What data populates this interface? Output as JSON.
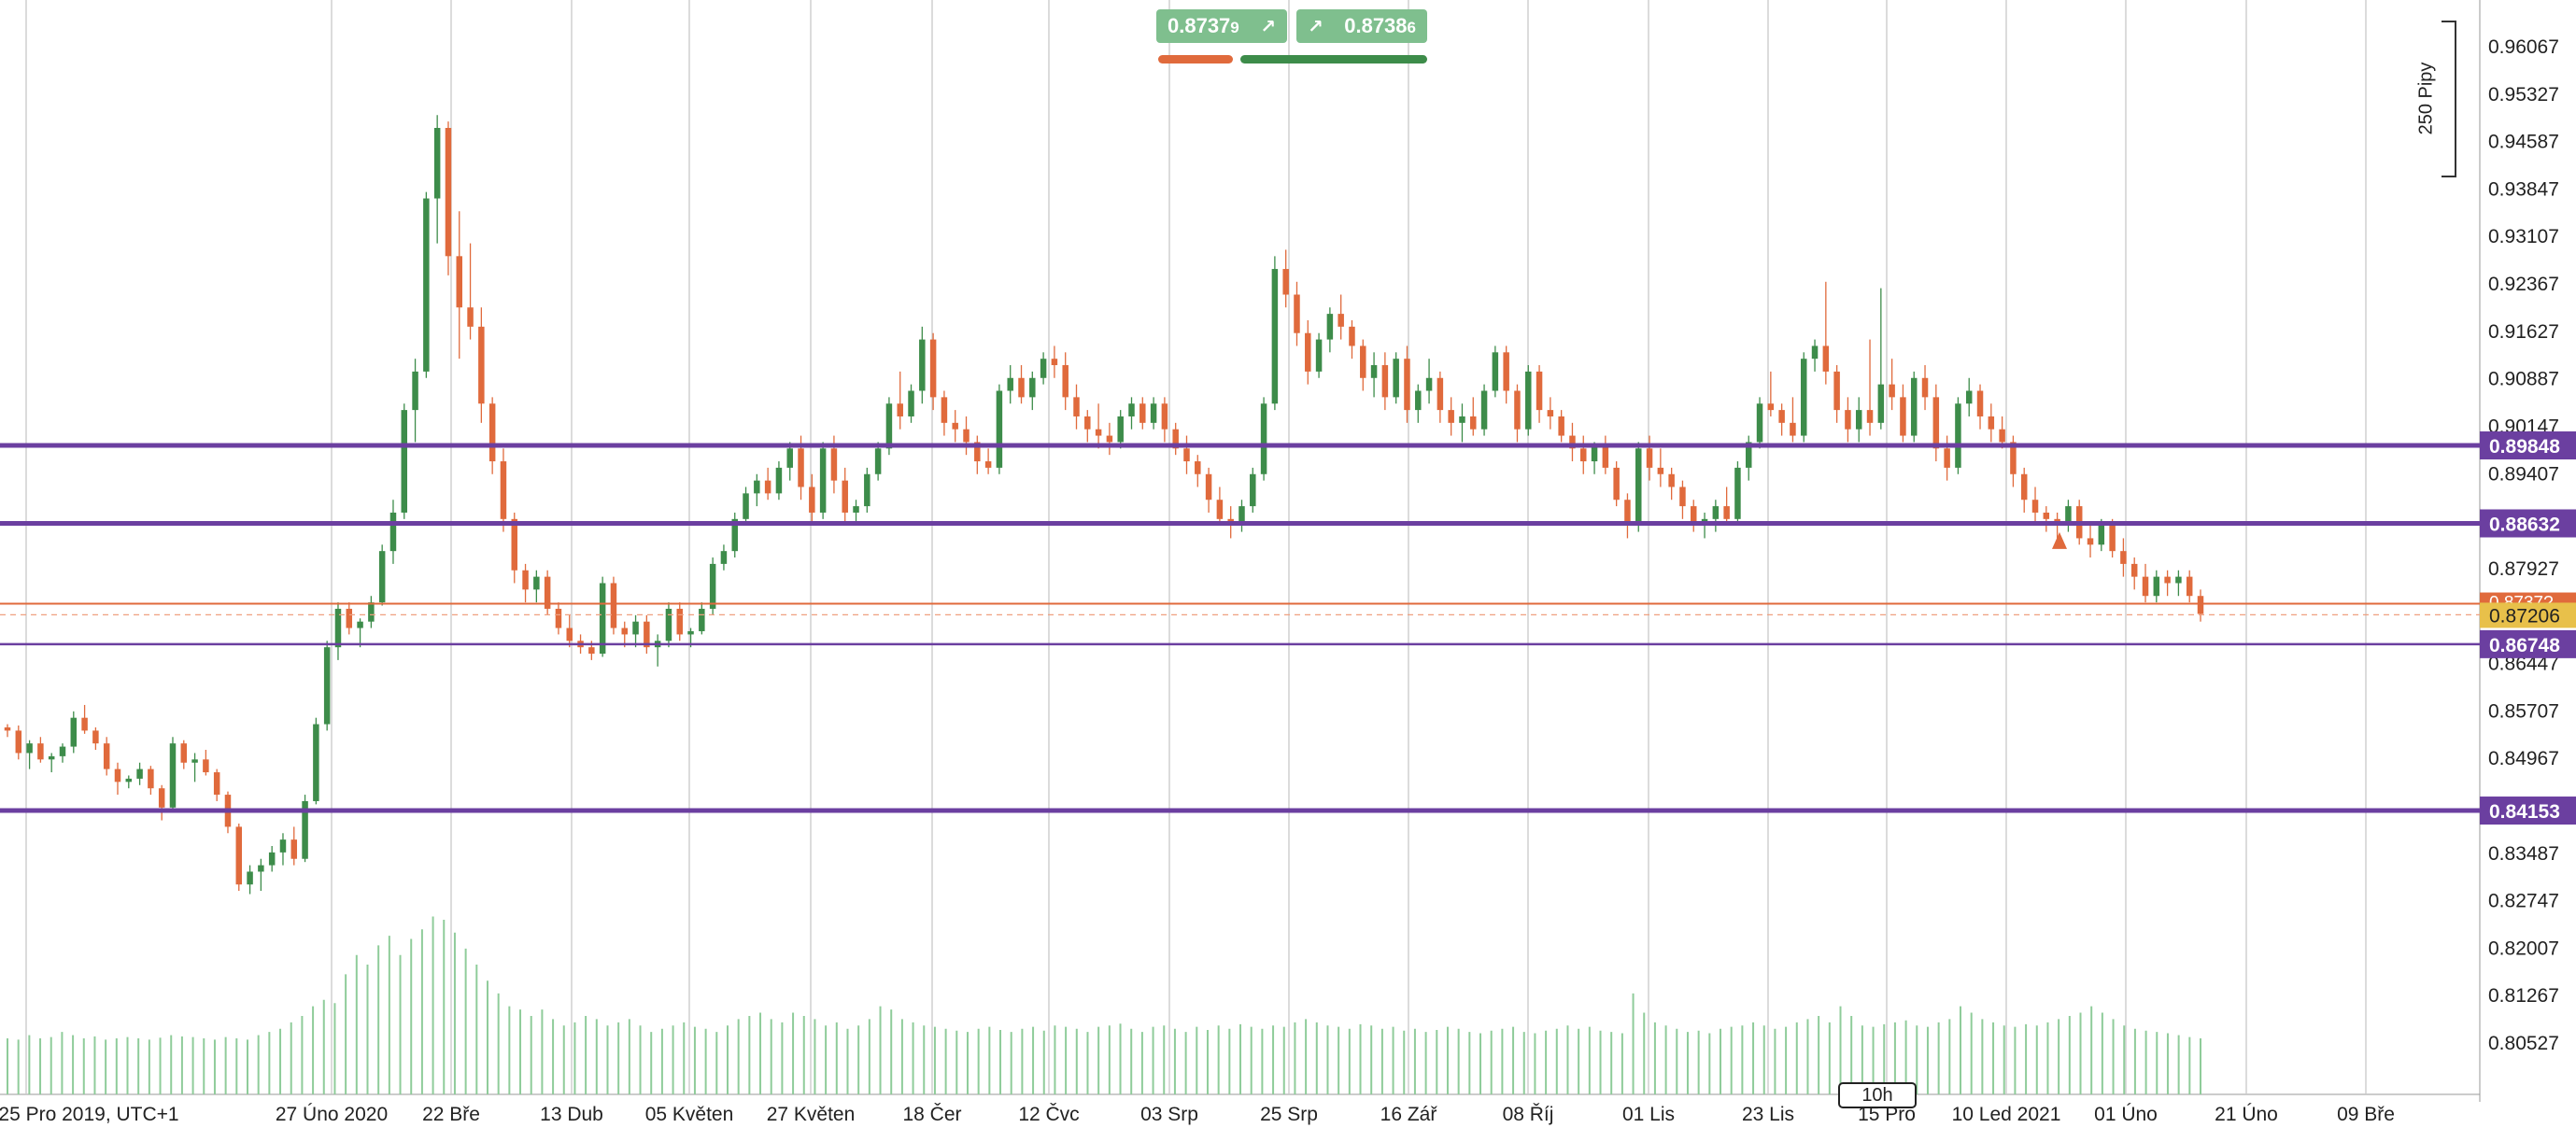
{
  "chart_data": {
    "type": "candlestick",
    "y_ticks": [
      "0.96067",
      "0.95327",
      "0.94587",
      "0.93847",
      "0.93107",
      "0.92367",
      "0.91627",
      "0.90887",
      "0.90147",
      "0.89407",
      "0.87927",
      "0.86447",
      "0.85707",
      "0.84967",
      "0.83487",
      "0.82747",
      "0.82007",
      "0.81267",
      "0.80527"
    ],
    "x_labels": [
      "25 Pro 2019, UTC+1",
      "27 Úno 2020",
      "22 Bře",
      "13 Dub",
      "05 Květen",
      "27 Květen",
      "18 Čer",
      "12 Čvc",
      "03 Srp",
      "25 Srp",
      "16 Zář",
      "08 Říj",
      "01 Lis",
      "23 Lis",
      "15 Pro",
      "10 Led 2021",
      "01 Úno",
      "21 Úno",
      "09 Bře"
    ],
    "ylim": [
      0.7987,
      0.9658
    ],
    "horizontal_levels": [
      {
        "value": 0.89848,
        "label": "0.89848",
        "color": "#6b3fa0"
      },
      {
        "value": 0.88632,
        "label": "0.88632",
        "color": "#6b3fa0"
      },
      {
        "value": 0.86748,
        "label": "0.86748",
        "color": "#6b3fa0"
      },
      {
        "value": 0.84153,
        "label": "0.84153",
        "color": "#6b3fa0"
      }
    ],
    "current_ask": {
      "value": 0.87379,
      "label": "0.8737?",
      "color": "#e06a3c"
    },
    "current_price": {
      "value": 0.87206,
      "label": "0.87206",
      "color": "#e8c04a"
    },
    "bid_quote": "0.8737",
    "bid_quote_small": "9",
    "ask_quote": "0.8738",
    "ask_quote_small": "6",
    "pip_label": "250 Pipy",
    "timeframe": "10h",
    "colors": {
      "up": "#3d8c4a",
      "down": "#e06a3c",
      "volume": "#8fcc9a",
      "grid": "#c8c8c8"
    },
    "candles": [
      [
        0.8545,
        0.855,
        0.853,
        0.854
      ],
      [
        0.854,
        0.8548,
        0.8495,
        0.8505
      ],
      [
        0.8505,
        0.8525,
        0.848,
        0.852
      ],
      [
        0.852,
        0.853,
        0.849,
        0.8495
      ],
      [
        0.8495,
        0.8505,
        0.8475,
        0.85
      ],
      [
        0.85,
        0.852,
        0.849,
        0.8515
      ],
      [
        0.8515,
        0.857,
        0.8505,
        0.856
      ],
      [
        0.856,
        0.858,
        0.8535,
        0.854
      ],
      [
        0.854,
        0.8545,
        0.851,
        0.852
      ],
      [
        0.852,
        0.853,
        0.847,
        0.848
      ],
      [
        0.848,
        0.849,
        0.844,
        0.846
      ],
      [
        0.846,
        0.847,
        0.845,
        0.8465
      ],
      [
        0.8465,
        0.849,
        0.8455,
        0.848
      ],
      [
        0.848,
        0.8485,
        0.844,
        0.845
      ],
      [
        0.845,
        0.8455,
        0.84,
        0.842
      ],
      [
        0.842,
        0.853,
        0.8415,
        0.852
      ],
      [
        0.852,
        0.8525,
        0.848,
        0.849
      ],
      [
        0.849,
        0.8505,
        0.846,
        0.8495
      ],
      [
        0.8495,
        0.851,
        0.847,
        0.8475
      ],
      [
        0.8475,
        0.848,
        0.843,
        0.844
      ],
      [
        0.844,
        0.8445,
        0.838,
        0.839
      ],
      [
        0.839,
        0.8395,
        0.829,
        0.83
      ],
      [
        0.83,
        0.833,
        0.8285,
        0.832
      ],
      [
        0.832,
        0.834,
        0.829,
        0.833
      ],
      [
        0.833,
        0.836,
        0.832,
        0.835
      ],
      [
        0.835,
        0.838,
        0.833,
        0.837
      ],
      [
        0.837,
        0.839,
        0.833,
        0.834
      ],
      [
        0.834,
        0.844,
        0.8335,
        0.843
      ],
      [
        0.843,
        0.856,
        0.8425,
        0.855
      ],
      [
        0.855,
        0.868,
        0.854,
        0.867
      ],
      [
        0.867,
        0.874,
        0.865,
        0.873
      ],
      [
        0.873,
        0.874,
        0.869,
        0.87
      ],
      [
        0.87,
        0.8715,
        0.867,
        0.871
      ],
      [
        0.871,
        0.875,
        0.87,
        0.874
      ],
      [
        0.874,
        0.883,
        0.8735,
        0.882
      ],
      [
        0.882,
        0.89,
        0.88,
        0.888
      ],
      [
        0.888,
        0.905,
        0.887,
        0.904
      ],
      [
        0.904,
        0.912,
        0.899,
        0.91
      ],
      [
        0.91,
        0.938,
        0.909,
        0.937
      ],
      [
        0.937,
        0.95,
        0.93,
        0.948
      ],
      [
        0.948,
        0.949,
        0.925,
        0.928
      ],
      [
        0.928,
        0.935,
        0.912,
        0.92
      ],
      [
        0.92,
        0.93,
        0.915,
        0.917
      ],
      [
        0.917,
        0.92,
        0.902,
        0.905
      ],
      [
        0.905,
        0.906,
        0.894,
        0.896
      ],
      [
        0.896,
        0.898,
        0.885,
        0.887
      ],
      [
        0.887,
        0.888,
        0.877,
        0.879
      ],
      [
        0.879,
        0.88,
        0.874,
        0.876
      ],
      [
        0.876,
        0.879,
        0.874,
        0.878
      ],
      [
        0.878,
        0.879,
        0.872,
        0.873
      ],
      [
        0.873,
        0.874,
        0.869,
        0.87
      ],
      [
        0.87,
        0.872,
        0.867,
        0.868
      ],
      [
        0.868,
        0.869,
        0.866,
        0.867
      ],
      [
        0.867,
        0.868,
        0.865,
        0.866
      ],
      [
        0.866,
        0.878,
        0.8655,
        0.877
      ],
      [
        0.877,
        0.878,
        0.869,
        0.87
      ],
      [
        0.87,
        0.871,
        0.867,
        0.869
      ],
      [
        0.869,
        0.872,
        0.867,
        0.871
      ],
      [
        0.871,
        0.872,
        0.866,
        0.867
      ],
      [
        0.867,
        0.869,
        0.864,
        0.868
      ],
      [
        0.868,
        0.874,
        0.867,
        0.873
      ],
      [
        0.873,
        0.874,
        0.868,
        0.869
      ],
      [
        0.869,
        0.87,
        0.867,
        0.8695
      ],
      [
        0.8695,
        0.874,
        0.869,
        0.873
      ],
      [
        0.873,
        0.881,
        0.872,
        0.88
      ],
      [
        0.88,
        0.883,
        0.879,
        0.882
      ],
      [
        0.882,
        0.888,
        0.881,
        0.887
      ],
      [
        0.887,
        0.892,
        0.886,
        0.891
      ],
      [
        0.891,
        0.894,
        0.889,
        0.893
      ],
      [
        0.893,
        0.895,
        0.89,
        0.891
      ],
      [
        0.891,
        0.896,
        0.89,
        0.895
      ],
      [
        0.895,
        0.899,
        0.893,
        0.898
      ],
      [
        0.898,
        0.9,
        0.89,
        0.892
      ],
      [
        0.892,
        0.894,
        0.886,
        0.888
      ],
      [
        0.888,
        0.899,
        0.887,
        0.898
      ],
      [
        0.898,
        0.9,
        0.891,
        0.893
      ],
      [
        0.893,
        0.895,
        0.886,
        0.888
      ],
      [
        0.888,
        0.89,
        0.886,
        0.889
      ],
      [
        0.889,
        0.895,
        0.888,
        0.894
      ],
      [
        0.894,
        0.899,
        0.893,
        0.898
      ],
      [
        0.898,
        0.906,
        0.897,
        0.905
      ],
      [
        0.905,
        0.91,
        0.901,
        0.903
      ],
      [
        0.903,
        0.908,
        0.902,
        0.907
      ],
      [
        0.907,
        0.917,
        0.905,
        0.915
      ],
      [
        0.915,
        0.916,
        0.904,
        0.906
      ],
      [
        0.906,
        0.907,
        0.9,
        0.902
      ],
      [
        0.902,
        0.904,
        0.899,
        0.901
      ],
      [
        0.901,
        0.903,
        0.897,
        0.899
      ],
      [
        0.899,
        0.9,
        0.894,
        0.896
      ],
      [
        0.896,
        0.898,
        0.894,
        0.895
      ],
      [
        0.895,
        0.908,
        0.894,
        0.907
      ],
      [
        0.907,
        0.911,
        0.905,
        0.909
      ],
      [
        0.909,
        0.911,
        0.905,
        0.906
      ],
      [
        0.906,
        0.91,
        0.904,
        0.909
      ],
      [
        0.909,
        0.913,
        0.908,
        0.912
      ],
      [
        0.912,
        0.914,
        0.909,
        0.911
      ],
      [
        0.911,
        0.913,
        0.904,
        0.906
      ],
      [
        0.906,
        0.908,
        0.901,
        0.903
      ],
      [
        0.903,
        0.904,
        0.899,
        0.901
      ],
      [
        0.901,
        0.905,
        0.898,
        0.9
      ],
      [
        0.9,
        0.902,
        0.897,
        0.899
      ],
      [
        0.899,
        0.904,
        0.898,
        0.903
      ],
      [
        0.903,
        0.906,
        0.901,
        0.905
      ],
      [
        0.905,
        0.906,
        0.901,
        0.902
      ],
      [
        0.902,
        0.906,
        0.901,
        0.905
      ],
      [
        0.905,
        0.906,
        0.899,
        0.901
      ],
      [
        0.901,
        0.902,
        0.897,
        0.898
      ],
      [
        0.898,
        0.9,
        0.894,
        0.896
      ],
      [
        0.896,
        0.897,
        0.892,
        0.894
      ],
      [
        0.894,
        0.895,
        0.888,
        0.89
      ],
      [
        0.89,
        0.892,
        0.886,
        0.887
      ],
      [
        0.887,
        0.889,
        0.884,
        0.886
      ],
      [
        0.886,
        0.89,
        0.885,
        0.889
      ],
      [
        0.889,
        0.895,
        0.888,
        0.894
      ],
      [
        0.894,
        0.906,
        0.893,
        0.905
      ],
      [
        0.905,
        0.928,
        0.904,
        0.926
      ],
      [
        0.926,
        0.929,
        0.92,
        0.922
      ],
      [
        0.922,
        0.924,
        0.914,
        0.916
      ],
      [
        0.916,
        0.918,
        0.908,
        0.91
      ],
      [
        0.91,
        0.916,
        0.909,
        0.915
      ],
      [
        0.915,
        0.92,
        0.913,
        0.919
      ],
      [
        0.919,
        0.922,
        0.915,
        0.917
      ],
      [
        0.917,
        0.918,
        0.912,
        0.914
      ],
      [
        0.914,
        0.915,
        0.907,
        0.909
      ],
      [
        0.909,
        0.913,
        0.906,
        0.911
      ],
      [
        0.911,
        0.913,
        0.904,
        0.906
      ],
      [
        0.906,
        0.913,
        0.905,
        0.912
      ],
      [
        0.912,
        0.914,
        0.902,
        0.904
      ],
      [
        0.904,
        0.908,
        0.902,
        0.907
      ],
      [
        0.907,
        0.912,
        0.905,
        0.909
      ],
      [
        0.909,
        0.91,
        0.902,
        0.904
      ],
      [
        0.904,
        0.906,
        0.9,
        0.902
      ],
      [
        0.902,
        0.905,
        0.899,
        0.903
      ],
      [
        0.903,
        0.906,
        0.9,
        0.901
      ],
      [
        0.901,
        0.908,
        0.9,
        0.907
      ],
      [
        0.907,
        0.914,
        0.906,
        0.913
      ],
      [
        0.913,
        0.914,
        0.905,
        0.907
      ],
      [
        0.907,
        0.908,
        0.899,
        0.901
      ],
      [
        0.901,
        0.911,
        0.9,
        0.91
      ],
      [
        0.91,
        0.911,
        0.902,
        0.904
      ],
      [
        0.904,
        0.906,
        0.901,
        0.903
      ],
      [
        0.903,
        0.904,
        0.899,
        0.9
      ],
      [
        0.9,
        0.902,
        0.896,
        0.898
      ],
      [
        0.898,
        0.9,
        0.894,
        0.896
      ],
      [
        0.896,
        0.899,
        0.894,
        0.8985
      ],
      [
        0.8985,
        0.9,
        0.894,
        0.895
      ],
      [
        0.895,
        0.896,
        0.889,
        0.89
      ],
      [
        0.89,
        0.891,
        0.884,
        0.886
      ],
      [
        0.886,
        0.899,
        0.885,
        0.898
      ],
      [
        0.898,
        0.9,
        0.893,
        0.895
      ],
      [
        0.895,
        0.898,
        0.892,
        0.894
      ],
      [
        0.894,
        0.895,
        0.89,
        0.892
      ],
      [
        0.892,
        0.893,
        0.887,
        0.889
      ],
      [
        0.889,
        0.89,
        0.885,
        0.886
      ],
      [
        0.886,
        0.888,
        0.884,
        0.887
      ],
      [
        0.887,
        0.89,
        0.885,
        0.889
      ],
      [
        0.889,
        0.892,
        0.886,
        0.887
      ],
      [
        0.887,
        0.896,
        0.886,
        0.895
      ],
      [
        0.895,
        0.9,
        0.893,
        0.899
      ],
      [
        0.899,
        0.906,
        0.898,
        0.905
      ],
      [
        0.905,
        0.91,
        0.903,
        0.904
      ],
      [
        0.904,
        0.905,
        0.9,
        0.902
      ],
      [
        0.902,
        0.906,
        0.899,
        0.9
      ],
      [
        0.9,
        0.913,
        0.899,
        0.912
      ],
      [
        0.912,
        0.915,
        0.91,
        0.914
      ],
      [
        0.914,
        0.924,
        0.908,
        0.91
      ],
      [
        0.91,
        0.911,
        0.902,
        0.904
      ],
      [
        0.904,
        0.906,
        0.899,
        0.901
      ],
      [
        0.901,
        0.906,
        0.899,
        0.904
      ],
      [
        0.904,
        0.915,
        0.9,
        0.902
      ],
      [
        0.902,
        0.923,
        0.901,
        0.908
      ],
      [
        0.908,
        0.912,
        0.904,
        0.906
      ],
      [
        0.906,
        0.908,
        0.899,
        0.9
      ],
      [
        0.9,
        0.91,
        0.899,
        0.909
      ],
      [
        0.909,
        0.911,
        0.904,
        0.906
      ],
      [
        0.906,
        0.908,
        0.896,
        0.898
      ],
      [
        0.898,
        0.9,
        0.893,
        0.895
      ],
      [
        0.895,
        0.906,
        0.894,
        0.905
      ],
      [
        0.905,
        0.909,
        0.903,
        0.907
      ],
      [
        0.907,
        0.908,
        0.901,
        0.903
      ],
      [
        0.903,
        0.905,
        0.899,
        0.901
      ],
      [
        0.901,
        0.903,
        0.898,
        0.899
      ],
      [
        0.899,
        0.9,
        0.892,
        0.894
      ],
      [
        0.894,
        0.895,
        0.888,
        0.89
      ],
      [
        0.89,
        0.892,
        0.886,
        0.888
      ],
      [
        0.888,
        0.889,
        0.885,
        0.887
      ],
      [
        0.887,
        0.888,
        0.884,
        0.886
      ],
      [
        0.886,
        0.89,
        0.885,
        0.889
      ],
      [
        0.889,
        0.89,
        0.883,
        0.884
      ],
      [
        0.884,
        0.886,
        0.881,
        0.883
      ],
      [
        0.883,
        0.887,
        0.882,
        0.886
      ],
      [
        0.886,
        0.887,
        0.881,
        0.882
      ],
      [
        0.882,
        0.884,
        0.878,
        0.88
      ],
      [
        0.88,
        0.881,
        0.876,
        0.878
      ],
      [
        0.878,
        0.88,
        0.874,
        0.875
      ],
      [
        0.875,
        0.879,
        0.874,
        0.878
      ],
      [
        0.878,
        0.879,
        0.875,
        0.877
      ],
      [
        0.877,
        0.879,
        0.875,
        0.878
      ],
      [
        0.878,
        0.879,
        0.874,
        0.875
      ],
      [
        0.875,
        0.876,
        0.871,
        0.8722
      ]
    ],
    "volumes": [
      0.806,
      0.8058,
      0.8065,
      0.806,
      0.8062,
      0.807,
      0.8065,
      0.806,
      0.8063,
      0.8058,
      0.806,
      0.8062,
      0.806,
      0.8058,
      0.8061,
      0.8065,
      0.8063,
      0.8062,
      0.806,
      0.8058,
      0.8062,
      0.806,
      0.8058,
      0.8065,
      0.807,
      0.8075,
      0.8085,
      0.8095,
      0.811,
      0.812,
      0.8115,
      0.816,
      0.819,
      0.8175,
      0.8205,
      0.822,
      0.819,
      0.8215,
      0.823,
      0.825,
      0.8245,
      0.8225,
      0.82,
      0.8175,
      0.815,
      0.813,
      0.811,
      0.8105,
      0.8095,
      0.8105,
      0.809,
      0.808,
      0.8085,
      0.8095,
      0.809,
      0.808,
      0.8085,
      0.809,
      0.808,
      0.807,
      0.8075,
      0.808,
      0.8085,
      0.8078,
      0.8075,
      0.807,
      0.808,
      0.809,
      0.8095,
      0.81,
      0.809,
      0.8085,
      0.81,
      0.8095,
      0.809,
      0.808,
      0.8085,
      0.8075,
      0.808,
      0.809,
      0.811,
      0.8105,
      0.809,
      0.8085,
      0.808,
      0.8078,
      0.8075,
      0.8072,
      0.807,
      0.8075,
      0.8078,
      0.8073,
      0.807,
      0.8075,
      0.8078,
      0.8072,
      0.808,
      0.8078,
      0.8075,
      0.807,
      0.8078,
      0.808,
      0.8083,
      0.8075,
      0.807,
      0.8078,
      0.808,
      0.8075,
      0.807,
      0.8078,
      0.8073,
      0.808,
      0.8075,
      0.8082,
      0.8078,
      0.8075,
      0.808,
      0.8078,
      0.8085,
      0.809,
      0.8085,
      0.808,
      0.8078,
      0.8075,
      0.8082,
      0.808,
      0.8075,
      0.8078,
      0.8072,
      0.8075,
      0.807,
      0.8073,
      0.8078,
      0.8075,
      0.807,
      0.8068,
      0.8072,
      0.8075,
      0.8078,
      0.807,
      0.8068,
      0.8072,
      0.8075,
      0.808,
      0.8075,
      0.8078,
      0.8072,
      0.807,
      0.8068,
      0.813,
      0.81,
      0.8085,
      0.808,
      0.8075,
      0.807,
      0.8072,
      0.8068,
      0.8075,
      0.8078,
      0.808,
      0.8085,
      0.808,
      0.8075,
      0.8078,
      0.8085,
      0.809,
      0.8095,
      0.8085,
      0.811,
      0.8095,
      0.808,
      0.8078,
      0.8082,
      0.8085,
      0.8088,
      0.808,
      0.8078,
      0.8085,
      0.809,
      0.811,
      0.81,
      0.809,
      0.8085,
      0.808,
      0.8078,
      0.8082,
      0.808,
      0.8085,
      0.809,
      0.8095,
      0.81,
      0.811,
      0.81,
      0.809,
      0.808,
      0.8075,
      0.8072,
      0.807,
      0.8068,
      0.8065,
      0.8062,
      0.806
    ]
  }
}
